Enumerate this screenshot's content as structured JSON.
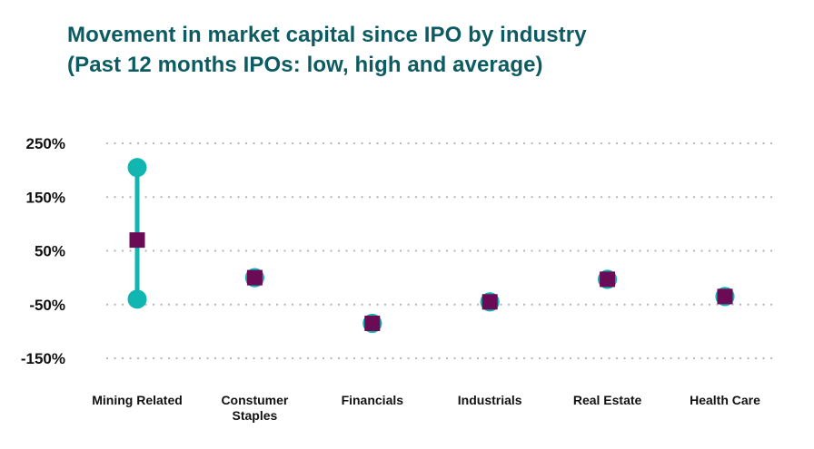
{
  "title": "Movement in market capital since IPO by industry",
  "subtitle": "(Past 12 months IPOs: low, high and average)",
  "colors": {
    "title": "#0c5b63",
    "range": "#11b5b2",
    "average": "#6b0a55",
    "grid": "#b5b5b5"
  },
  "chart_data": {
    "type": "scatter",
    "title": "Movement in market capital since IPO by industry",
    "subtitle": "(Past 12 months IPOs: low, high and average)",
    "xlabel": "",
    "ylabel": "",
    "categories": [
      {
        "lines": [
          "Mining Related"
        ]
      },
      {
        "lines": [
          "Constumer",
          "Staples"
        ]
      },
      {
        "lines": [
          "Financials"
        ]
      },
      {
        "lines": [
          "Industrials"
        ]
      },
      {
        "lines": [
          "Real Estate"
        ]
      },
      {
        "lines": [
          "Health Care"
        ]
      }
    ],
    "series": [
      {
        "values": [
          -40,
          0,
          -85,
          -45,
          -3,
          -35
        ]
      },
      {
        "values": [
          205,
          0,
          -85,
          -45,
          -3,
          -35
        ]
      },
      {
        "values": [
          70,
          0,
          -85,
          -45,
          -3,
          -35
        ]
      }
    ],
    "yticks": [
      {
        "value": 250,
        "label": "250%"
      },
      {
        "value": 150,
        "label": "150%"
      },
      {
        "value": 50,
        "label": "50%"
      },
      {
        "value": -50,
        "label": "-50%"
      },
      {
        "value": -150,
        "label": "-150%"
      }
    ],
    "ylim": [
      -150,
      250
    ],
    "grid": true,
    "grid_style": "dotted"
  }
}
